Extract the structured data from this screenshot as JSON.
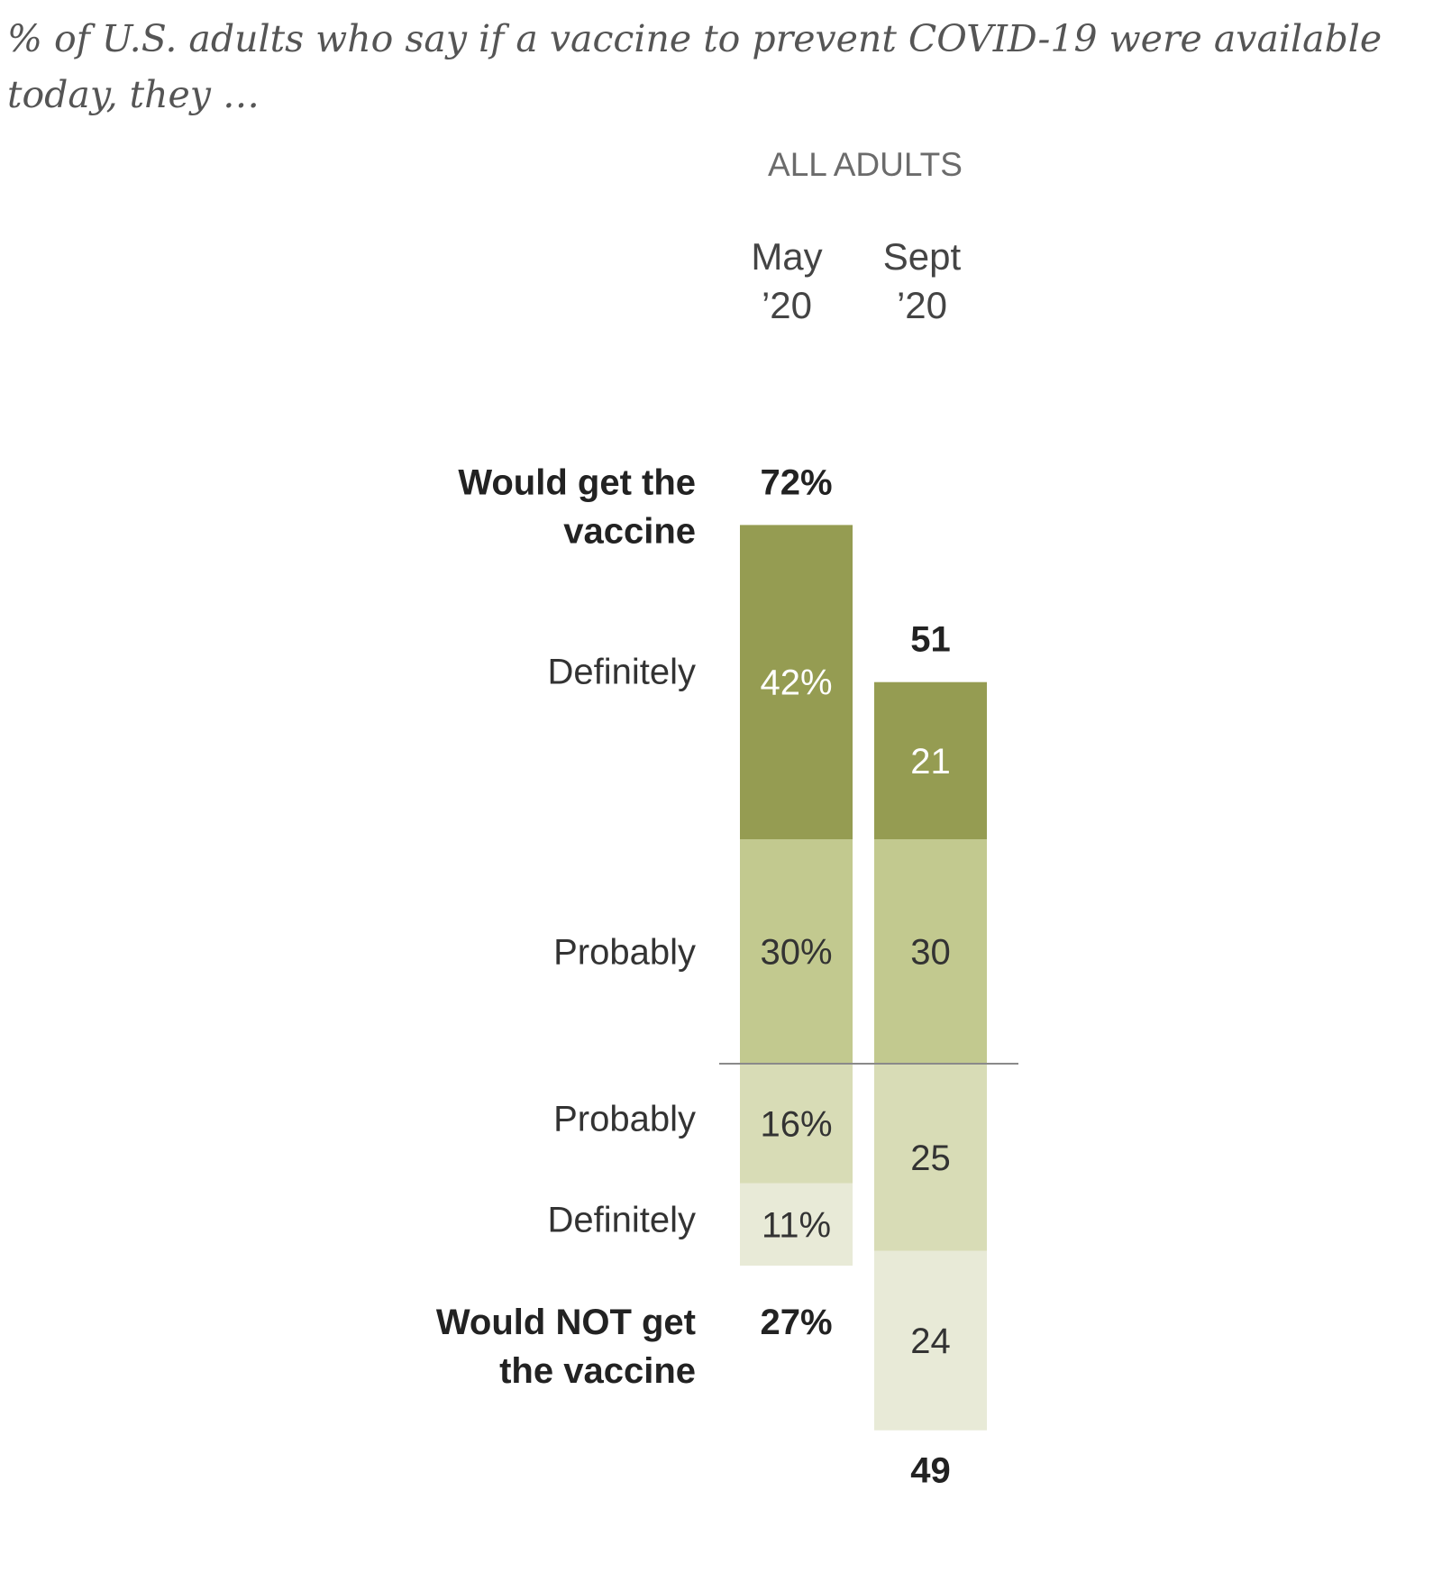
{
  "chart_data": {
    "type": "bar",
    "subtitle": "% of U.S. adults who say if a vaccine to prevent COVID-19 were available today, they …",
    "group_label": "ALL ADULTS",
    "columns": [
      {
        "line1": "May",
        "line2": "’20"
      },
      {
        "line1": "Sept",
        "line2": "’20"
      }
    ],
    "net_labels": {
      "get": [
        "Would get the",
        "vaccine"
      ],
      "not_get": [
        "Would NOT get",
        "the vaccine"
      ]
    },
    "categories": [
      "May ’20",
      "Sept ’20"
    ],
    "series": [
      {
        "name": "Definitely",
        "side": "get",
        "color": "#959c52",
        "text_color": "#ffffff",
        "values": [
          42,
          21
        ],
        "labels": [
          "42%",
          "21"
        ]
      },
      {
        "name": "Probably",
        "side": "get",
        "color": "#c2c98f",
        "text_color": "#333333",
        "values": [
          30,
          30
        ],
        "labels": [
          "30%",
          "30"
        ]
      },
      {
        "name": "Probably",
        "side": "not",
        "color": "#d8dcb6",
        "text_color": "#333333",
        "values": [
          16,
          25
        ],
        "labels": [
          "16%",
          "25"
        ]
      },
      {
        "name": "Definitely",
        "side": "not",
        "color": "#e8ead7",
        "text_color": "#333333",
        "values": [
          11,
          24
        ],
        "labels": [
          "11%",
          "24"
        ]
      }
    ],
    "totals": {
      "get": {
        "values": [
          72,
          51
        ],
        "labels": [
          "72%",
          "51"
        ]
      },
      "not_get": {
        "values": [
          27,
          49
        ],
        "labels": [
          "27%",
          "49"
        ]
      }
    }
  }
}
